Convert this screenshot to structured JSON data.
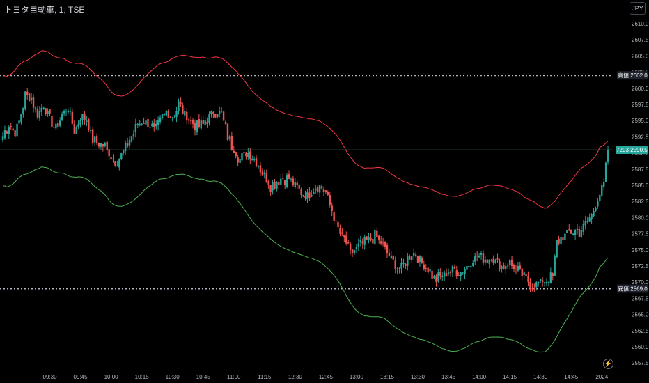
{
  "header": {
    "title": "トヨタ自動車, 1, TSE",
    "currency": "JPY"
  },
  "chart_data": {
    "type": "candlestick",
    "ylim": [
      2557.5,
      2611.5
    ],
    "y_ticks": [
      "2610.0",
      "2607.5",
      "2605.0",
      "2602.5",
      "2600.0",
      "2597.5",
      "2595.0",
      "2592.5",
      "2590.0",
      "2587.5",
      "2585.0",
      "2582.5",
      "2580.0",
      "2577.5",
      "2575.0",
      "2572.5",
      "2570.0",
      "2567.5",
      "2565.0",
      "2562.5",
      "2560.0",
      "2557.5"
    ],
    "x_ticks": [
      {
        "label": "09:30",
        "bar": 23
      },
      {
        "label": "09:45",
        "bar": 38
      },
      {
        "label": "10:00",
        "bar": 53
      },
      {
        "label": "10:15",
        "bar": 68
      },
      {
        "label": "10:30",
        "bar": 83
      },
      {
        "label": "10:45",
        "bar": 98
      },
      {
        "label": "11:00",
        "bar": 113
      },
      {
        "label": "11:15",
        "bar": 128
      },
      {
        "label": "12:30",
        "bar": 143
      },
      {
        "label": "12:45",
        "bar": 158
      },
      {
        "label": "13:00",
        "bar": 173
      },
      {
        "label": "13:15",
        "bar": 188
      },
      {
        "label": "13:30",
        "bar": 203
      },
      {
        "label": "13:45",
        "bar": 218
      },
      {
        "label": "14:00",
        "bar": 233
      },
      {
        "label": "14:15",
        "bar": 248
      },
      {
        "label": "14:30",
        "bar": 263
      },
      {
        "label": "14:45",
        "bar": 278
      },
      {
        "label": "2024",
        "bar": 293
      }
    ],
    "colors": {
      "up": "#26a69a",
      "down": "#ef5350",
      "upper_band": "#f23645",
      "lower_band": "#4caf50",
      "background": "#000000"
    },
    "high_line": {
      "label": "高値",
      "value": "2602.0"
    },
    "low_line": {
      "label": "安値",
      "value": "2569.0"
    },
    "last_price": {
      "volume_label": "7203",
      "value": "2590.5"
    },
    "close_anchors": [
      [
        0,
        2592.5
      ],
      [
        3,
        2594.5
      ],
      [
        6,
        2593.0
      ],
      [
        9,
        2596.0
      ],
      [
        11,
        2599.0
      ],
      [
        14,
        2598.5
      ],
      [
        17,
        2596.0
      ],
      [
        20,
        2597.5
      ],
      [
        23,
        2595.0
      ],
      [
        26,
        2594.0
      ],
      [
        29,
        2596.0
      ],
      [
        32,
        2597.0
      ],
      [
        35,
        2593.5
      ],
      [
        38,
        2595.5
      ],
      [
        41,
        2595.0
      ],
      [
        44,
        2592.0
      ],
      [
        47,
        2591.5
      ],
      [
        50,
        2591.0
      ],
      [
        53,
        2589.5
      ],
      [
        56,
        2588.5
      ],
      [
        59,
        2590.5
      ],
      [
        62,
        2592.0
      ],
      [
        65,
        2594.0
      ],
      [
        68,
        2595.0
      ],
      [
        71,
        2594.5
      ],
      [
        74,
        2593.5
      ],
      [
        77,
        2595.0
      ],
      [
        80,
        2596.5
      ],
      [
        83,
        2595.5
      ],
      [
        86,
        2597.5
      ],
      [
        89,
        2596.0
      ],
      [
        92,
        2595.0
      ],
      [
        95,
        2594.0
      ],
      [
        98,
        2594.5
      ],
      [
        101,
        2595.5
      ],
      [
        104,
        2596.5
      ],
      [
        107,
        2596.0
      ],
      [
        110,
        2592.5
      ],
      [
        113,
        2590.5
      ],
      [
        116,
        2589.0
      ],
      [
        119,
        2590.0
      ],
      [
        122,
        2589.5
      ],
      [
        125,
        2588.0
      ],
      [
        128,
        2586.5
      ],
      [
        131,
        2585.0
      ],
      [
        134,
        2585.5
      ],
      [
        137,
        2586.0
      ],
      [
        140,
        2586.0
      ],
      [
        143,
        2585.0
      ],
      [
        146,
        2584.0
      ],
      [
        149,
        2583.5
      ],
      [
        152,
        2584.5
      ],
      [
        155,
        2585.0
      ],
      [
        158,
        2584.0
      ],
      [
        161,
        2581.0
      ],
      [
        164,
        2578.0
      ],
      [
        167,
        2576.5
      ],
      [
        170,
        2574.5
      ],
      [
        173,
        2575.0
      ],
      [
        176,
        2576.0
      ],
      [
        179,
        2576.5
      ],
      [
        182,
        2577.0
      ],
      [
        185,
        2576.0
      ],
      [
        188,
        2574.5
      ],
      [
        191,
        2573.0
      ],
      [
        194,
        2572.0
      ],
      [
        197,
        2573.0
      ],
      [
        200,
        2574.5
      ],
      [
        203,
        2574.0
      ],
      [
        206,
        2572.5
      ],
      [
        209,
        2571.5
      ],
      [
        212,
        2570.5
      ],
      [
        215,
        2571.0
      ],
      [
        218,
        2571.5
      ],
      [
        221,
        2572.0
      ],
      [
        224,
        2571.5
      ],
      [
        227,
        2572.5
      ],
      [
        230,
        2573.5
      ],
      [
        233,
        2574.0
      ],
      [
        236,
        2573.5
      ],
      [
        239,
        2574.0
      ],
      [
        242,
        2573.0
      ],
      [
        245,
        2572.5
      ],
      [
        248,
        2573.0
      ],
      [
        251,
        2572.0
      ],
      [
        254,
        2571.0
      ],
      [
        257,
        2570.0
      ],
      [
        260,
        2569.5
      ],
      [
        263,
        2570.0
      ],
      [
        266,
        2570.5
      ],
      [
        269,
        2571.0
      ],
      [
        271,
        2576.0
      ],
      [
        273,
        2577.0
      ],
      [
        276,
        2577.5
      ],
      [
        279,
        2578.0
      ],
      [
        282,
        2577.5
      ],
      [
        285,
        2579.0
      ],
      [
        288,
        2580.5
      ],
      [
        291,
        2583.0
      ],
      [
        294,
        2585.0
      ],
      [
        296,
        2590.5
      ]
    ],
    "band_offsets": [
      [
        0,
        8.5
      ],
      [
        20,
        9.0
      ],
      [
        60,
        8.5
      ],
      [
        100,
        9.5
      ],
      [
        140,
        10.5
      ],
      [
        180,
        11.5
      ],
      [
        220,
        12.0
      ],
      [
        260,
        11.5
      ],
      [
        280,
        10.0
      ],
      [
        296,
        9.0
      ]
    ]
  }
}
